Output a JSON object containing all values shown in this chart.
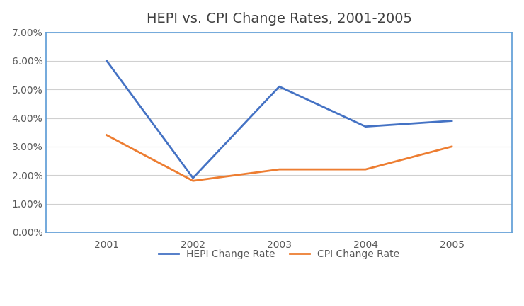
{
  "title": "HEPI vs. CPI Change Rates, 2001-2005",
  "years": [
    2001,
    2002,
    2003,
    2004,
    2005
  ],
  "hepi": [
    0.06,
    0.019,
    0.051,
    0.037,
    0.039
  ],
  "cpi": [
    0.034,
    0.018,
    0.022,
    0.022,
    0.03
  ],
  "hepi_label": "HEPI Change Rate",
  "cpi_label": "CPI Change Rate",
  "hepi_color": "#4472C4",
  "cpi_color": "#ED7D31",
  "ylim": [
    0.0,
    0.07
  ],
  "yticks": [
    0.0,
    0.01,
    0.02,
    0.03,
    0.04,
    0.05,
    0.06,
    0.07
  ],
  "background_color": "#FFFFFF",
  "plot_bg_color": "#FFFFFF",
  "grid_color": "#D0D0D0",
  "title_fontsize": 14,
  "tick_fontsize": 10,
  "legend_fontsize": 10,
  "line_width": 2.0,
  "border_color": "#5B9BD5",
  "title_color": "#404040",
  "tick_color": "#595959"
}
